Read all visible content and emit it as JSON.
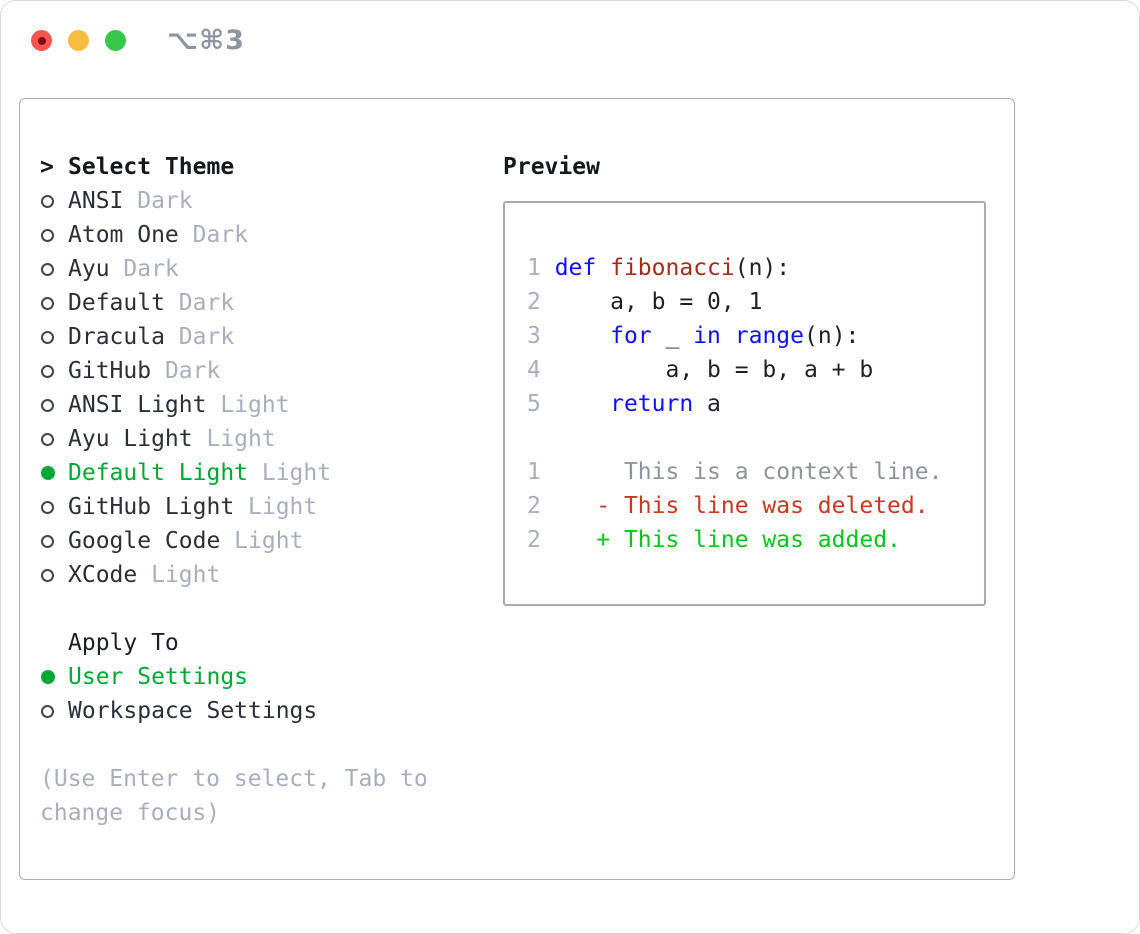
{
  "window": {
    "title": "⌥⌘3",
    "controls": [
      {
        "name": "close-button",
        "color": "#f6564f"
      },
      {
        "name": "minimize-button",
        "color": "#f8bd40"
      },
      {
        "name": "zoom-button",
        "color": "#36c84b"
      }
    ]
  },
  "colors": {
    "accent_green": "#00a734",
    "muted_gray": "#a8afbb",
    "keyword_blue": "#0f0fff",
    "function_red": "#a32c1c",
    "deleted_red": "#c23b22",
    "added_green": "#06c51e",
    "traffic_red": "#f6564f",
    "traffic_yellow": "#f8bd40",
    "traffic_green": "#36c84b"
  },
  "theme_section": {
    "prompt": ">",
    "title": "Select Theme",
    "items": [
      {
        "name": "ANSI",
        "variant": "Dark",
        "selected": false
      },
      {
        "name": "Atom One",
        "variant": "Dark",
        "selected": false
      },
      {
        "name": "Ayu",
        "variant": "Dark",
        "selected": false
      },
      {
        "name": "Default",
        "variant": "Dark",
        "selected": false
      },
      {
        "name": "Dracula",
        "variant": "Dark",
        "selected": false
      },
      {
        "name": "GitHub",
        "variant": "Dark",
        "selected": false
      },
      {
        "name": "ANSI Light",
        "variant": "Light",
        "selected": false
      },
      {
        "name": "Ayu Light",
        "variant": "Light",
        "selected": false
      },
      {
        "name": "Default Light",
        "variant": "Light",
        "selected": true
      },
      {
        "name": "GitHub Light",
        "variant": "Light",
        "selected": false
      },
      {
        "name": "Google Code",
        "variant": "Light",
        "selected": false
      },
      {
        "name": "XCode",
        "variant": "Light",
        "selected": false
      }
    ]
  },
  "apply_section": {
    "title": "Apply To",
    "items": [
      {
        "name": "User Settings",
        "selected": true
      },
      {
        "name": "Workspace Settings",
        "selected": false
      }
    ]
  },
  "hint": {
    "line1": "(Use Enter to select, Tab to",
    "line2": "change focus)"
  },
  "preview": {
    "title": "Preview",
    "lines": [
      [
        {
          "t": "1 ",
          "c": "num"
        },
        {
          "t": "def",
          "c": "kw"
        },
        {
          "t": " ",
          "c": "pl"
        },
        {
          "t": "fibonacci",
          "c": "fn"
        },
        {
          "t": "(n):",
          "c": "pl"
        }
      ],
      [
        {
          "t": "2 ",
          "c": "num"
        },
        {
          "t": "    a, b = 0, 1",
          "c": "pl"
        }
      ],
      [
        {
          "t": "3 ",
          "c": "num"
        },
        {
          "t": "    ",
          "c": "pl"
        },
        {
          "t": "for",
          "c": "kw"
        },
        {
          "t": " _ ",
          "c": "pl"
        },
        {
          "t": "in",
          "c": "kw"
        },
        {
          "t": " ",
          "c": "pl"
        },
        {
          "t": "range",
          "c": "kw"
        },
        {
          "t": "(n):",
          "c": "pl"
        }
      ],
      [
        {
          "t": "4 ",
          "c": "num"
        },
        {
          "t": "        a, b = b, a + b",
          "c": "pl"
        }
      ],
      [
        {
          "t": "5 ",
          "c": "num"
        },
        {
          "t": "    ",
          "c": "pl"
        },
        {
          "t": "return",
          "c": "kw"
        },
        {
          "t": " a",
          "c": "pl"
        }
      ],
      [],
      [
        {
          "t": "1",
          "c": "num"
        },
        {
          "t": "      This is a context line.",
          "c": "ctx"
        }
      ],
      [
        {
          "t": "2",
          "c": "num"
        },
        {
          "t": "    - This line was deleted.",
          "c": "del"
        }
      ],
      [
        {
          "t": "2",
          "c": "num"
        },
        {
          "t": "    + This line was added.",
          "c": "add"
        }
      ]
    ]
  }
}
